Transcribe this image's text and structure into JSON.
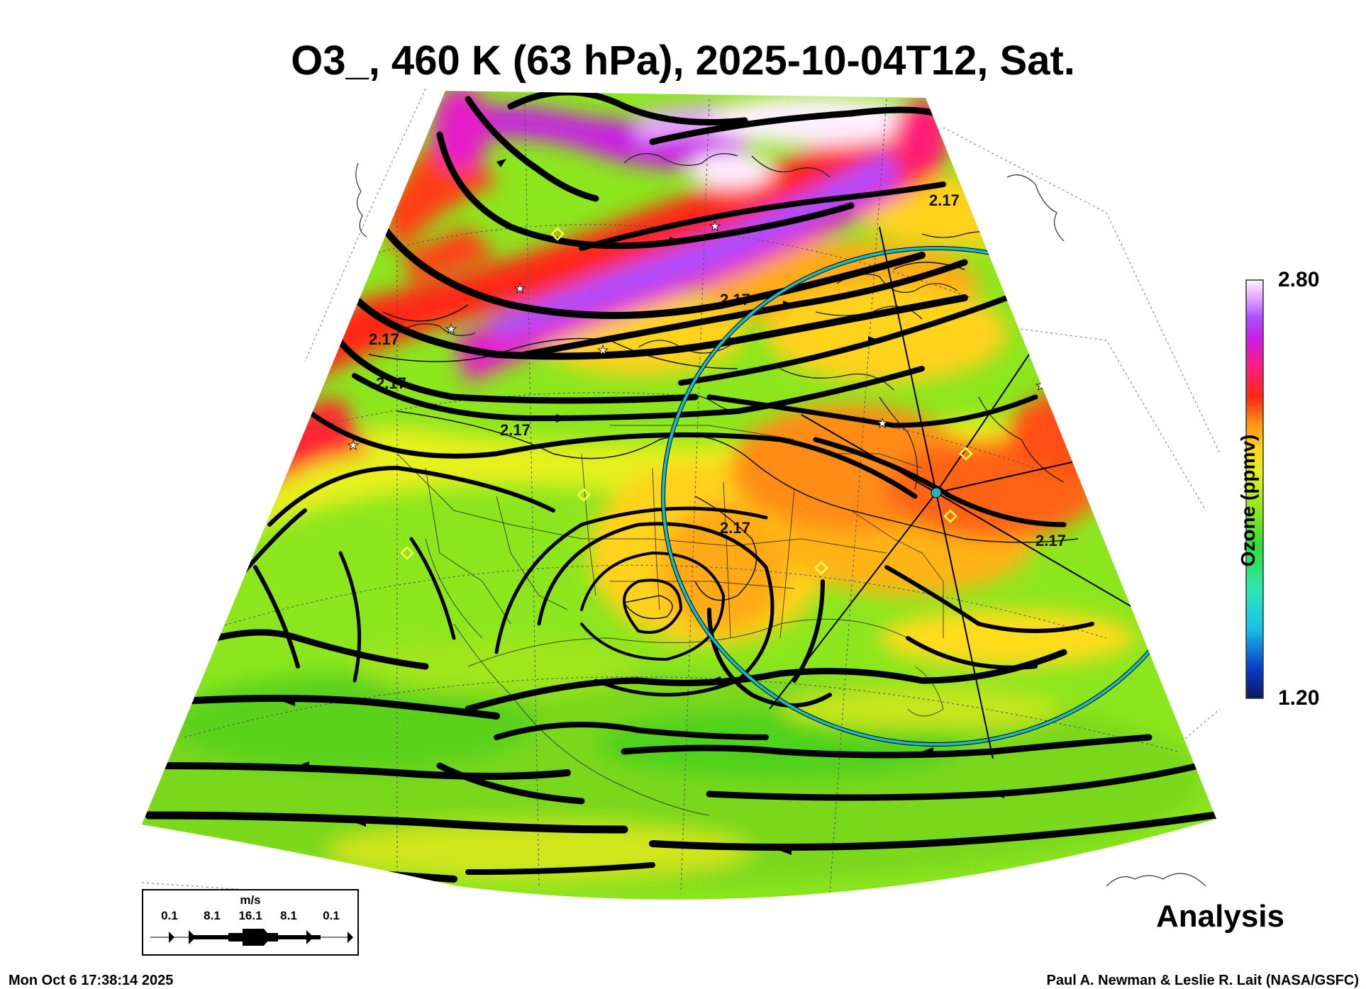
{
  "title": "O3_, 460 K (63 hPa), 2025-10-04T12, Sat.",
  "colorbar": {
    "max_label": "2.80",
    "min_label": "1.20",
    "label": "Ozone (ppmv)",
    "colors": [
      "#0a1a5a",
      "#0a3cc8",
      "#19c3e6",
      "#2de6b4",
      "#32dc3c",
      "#8ce61e",
      "#e6f01e",
      "#ffd21e",
      "#ff8c14",
      "#ff2814",
      "#ff1e78",
      "#c81ee6",
      "#aa50ff",
      "#e6aaff",
      "#fff0ff"
    ]
  },
  "contour_labels": [
    "2.17",
    "2.17",
    "2.17",
    "2.17",
    "2.17",
    "2.17",
    "2.17"
  ],
  "mode_label": "Analysis",
  "wind_legend": {
    "unit": "m/s",
    "values": [
      "0.1",
      "8.1",
      "16.1",
      "8.1",
      "0.1"
    ]
  },
  "timestamp": "Mon Oct  6 17:38:14 2025",
  "credit": "Paul A. Newman & Leslie R. Lait (NASA/GSFC)",
  "colors": {
    "ring": "#19b9c8",
    "streamline": "#000000"
  }
}
